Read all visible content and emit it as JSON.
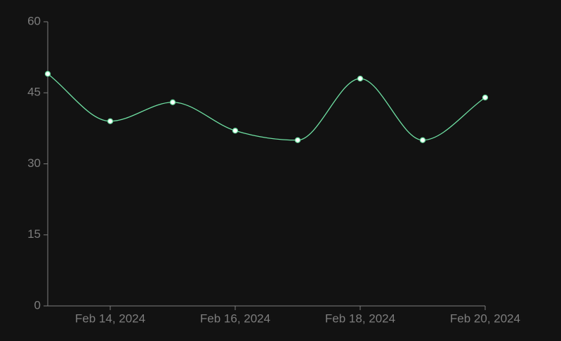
{
  "chart_data": {
    "type": "line",
    "x": [
      "2024-02-13",
      "2024-02-14",
      "2024-02-15",
      "2024-02-16",
      "2024-02-17",
      "2024-02-18",
      "2024-02-19",
      "2024-02-20"
    ],
    "series": [
      {
        "color": "#6fe0a3",
        "values": [
          49,
          39,
          43,
          37,
          35,
          48,
          35,
          44
        ]
      }
    ],
    "xlim": [
      "2024-02-13",
      "2024-02-20"
    ],
    "xticks": [
      {
        "value": "2024-02-14",
        "label": "Feb 14, 2024"
      },
      {
        "value": "2024-02-16",
        "label": "Feb 16, 2024"
      },
      {
        "value": "2024-02-18",
        "label": "Feb 18, 2024"
      },
      {
        "value": "2024-02-20",
        "label": "Feb 20, 2024"
      }
    ],
    "ylim": [
      0,
      60
    ],
    "yticks": [
      0,
      15,
      30,
      45,
      60
    ]
  }
}
